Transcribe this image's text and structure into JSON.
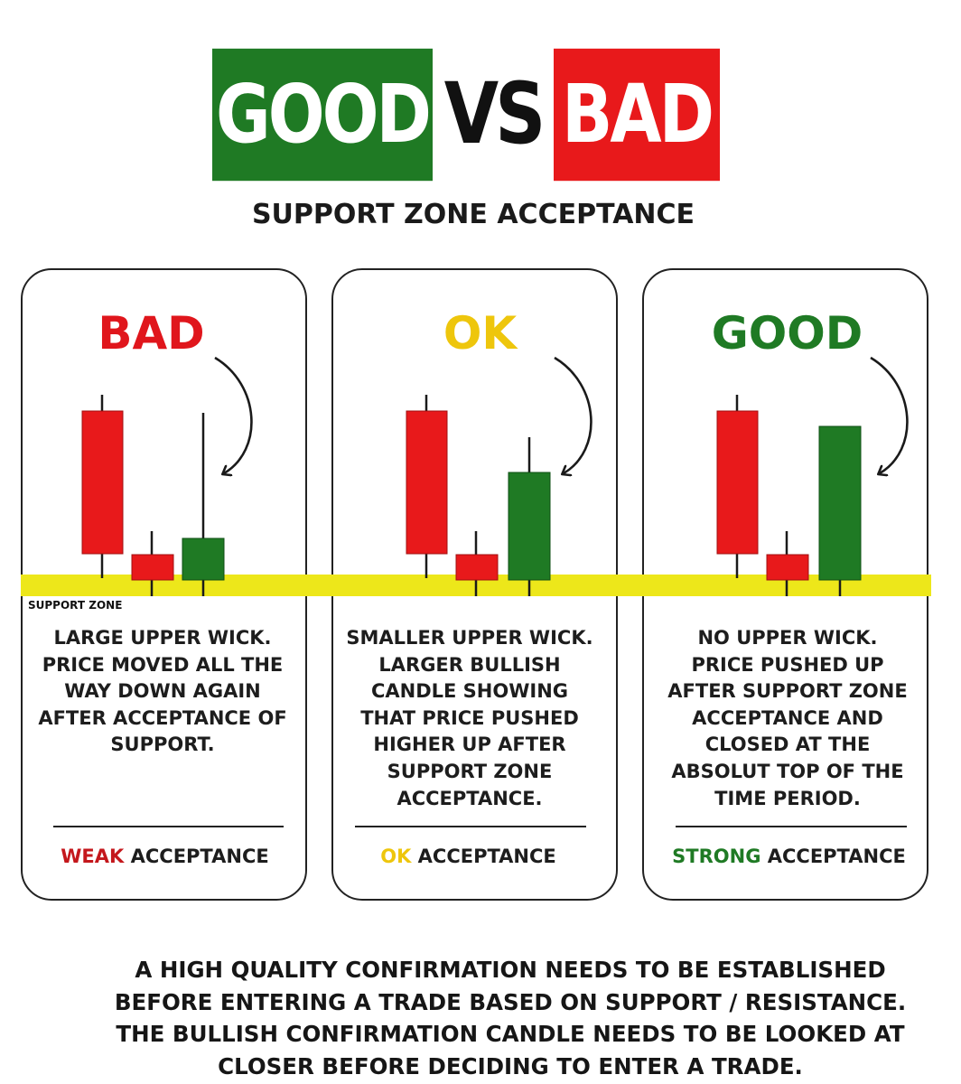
{
  "header": {
    "good": "GOOD",
    "vs": "VS",
    "bad": "BAD",
    "subtitle": "SUPPORT ZONE ACCEPTANCE"
  },
  "support_zone_label": "SUPPORT ZONE",
  "colors": {
    "green": "#1f7a24",
    "red": "#e8191b",
    "yellow": "#eec60c",
    "support": "#ede71a"
  },
  "panels": [
    {
      "title": "BAD",
      "description": [
        "LARGE UPPER WICK.",
        "PRICE MOVED ALL THE",
        "WAY DOWN AGAIN",
        "AFTER ACCEPTANCE OF",
        "SUPPORT."
      ],
      "acceptance_keyword": "WEAK",
      "acceptance_suffix": " ACCEPTANCE"
    },
    {
      "title": "OK",
      "description": [
        "SMALLER UPPER WICK.",
        "LARGER BULLISH",
        "CANDLE SHOWING",
        "THAT PRICE PUSHED",
        "HIGHER UP AFTER",
        "SUPPORT ZONE",
        "ACCEPTANCE."
      ],
      "acceptance_keyword": "OK",
      "acceptance_suffix": " ACCEPTANCE"
    },
    {
      "title": "GOOD",
      "description": [
        "NO UPPER WICK.",
        "PRICE PUSHED UP",
        "AFTER SUPPORT ZONE",
        "ACCEPTANCE AND",
        "CLOSED AT THE",
        "ABSOLUT TOP OF THE",
        "TIME PERIOD."
      ],
      "acceptance_keyword": "STRONG",
      "acceptance_suffix": " ACCEPTANCE"
    }
  ],
  "footer": [
    "A HIGH QUALITY CONFIRMATION NEEDS TO BE ESTABLISHED",
    "BEFORE ENTERING A TRADE BASED ON SUPPORT / RESISTANCE.",
    "THE BULLISH CONFIRMATION CANDLE NEEDS TO BE LOOKED AT",
    "CLOSER BEFORE DECIDING TO ENTER A TRADE."
  ]
}
